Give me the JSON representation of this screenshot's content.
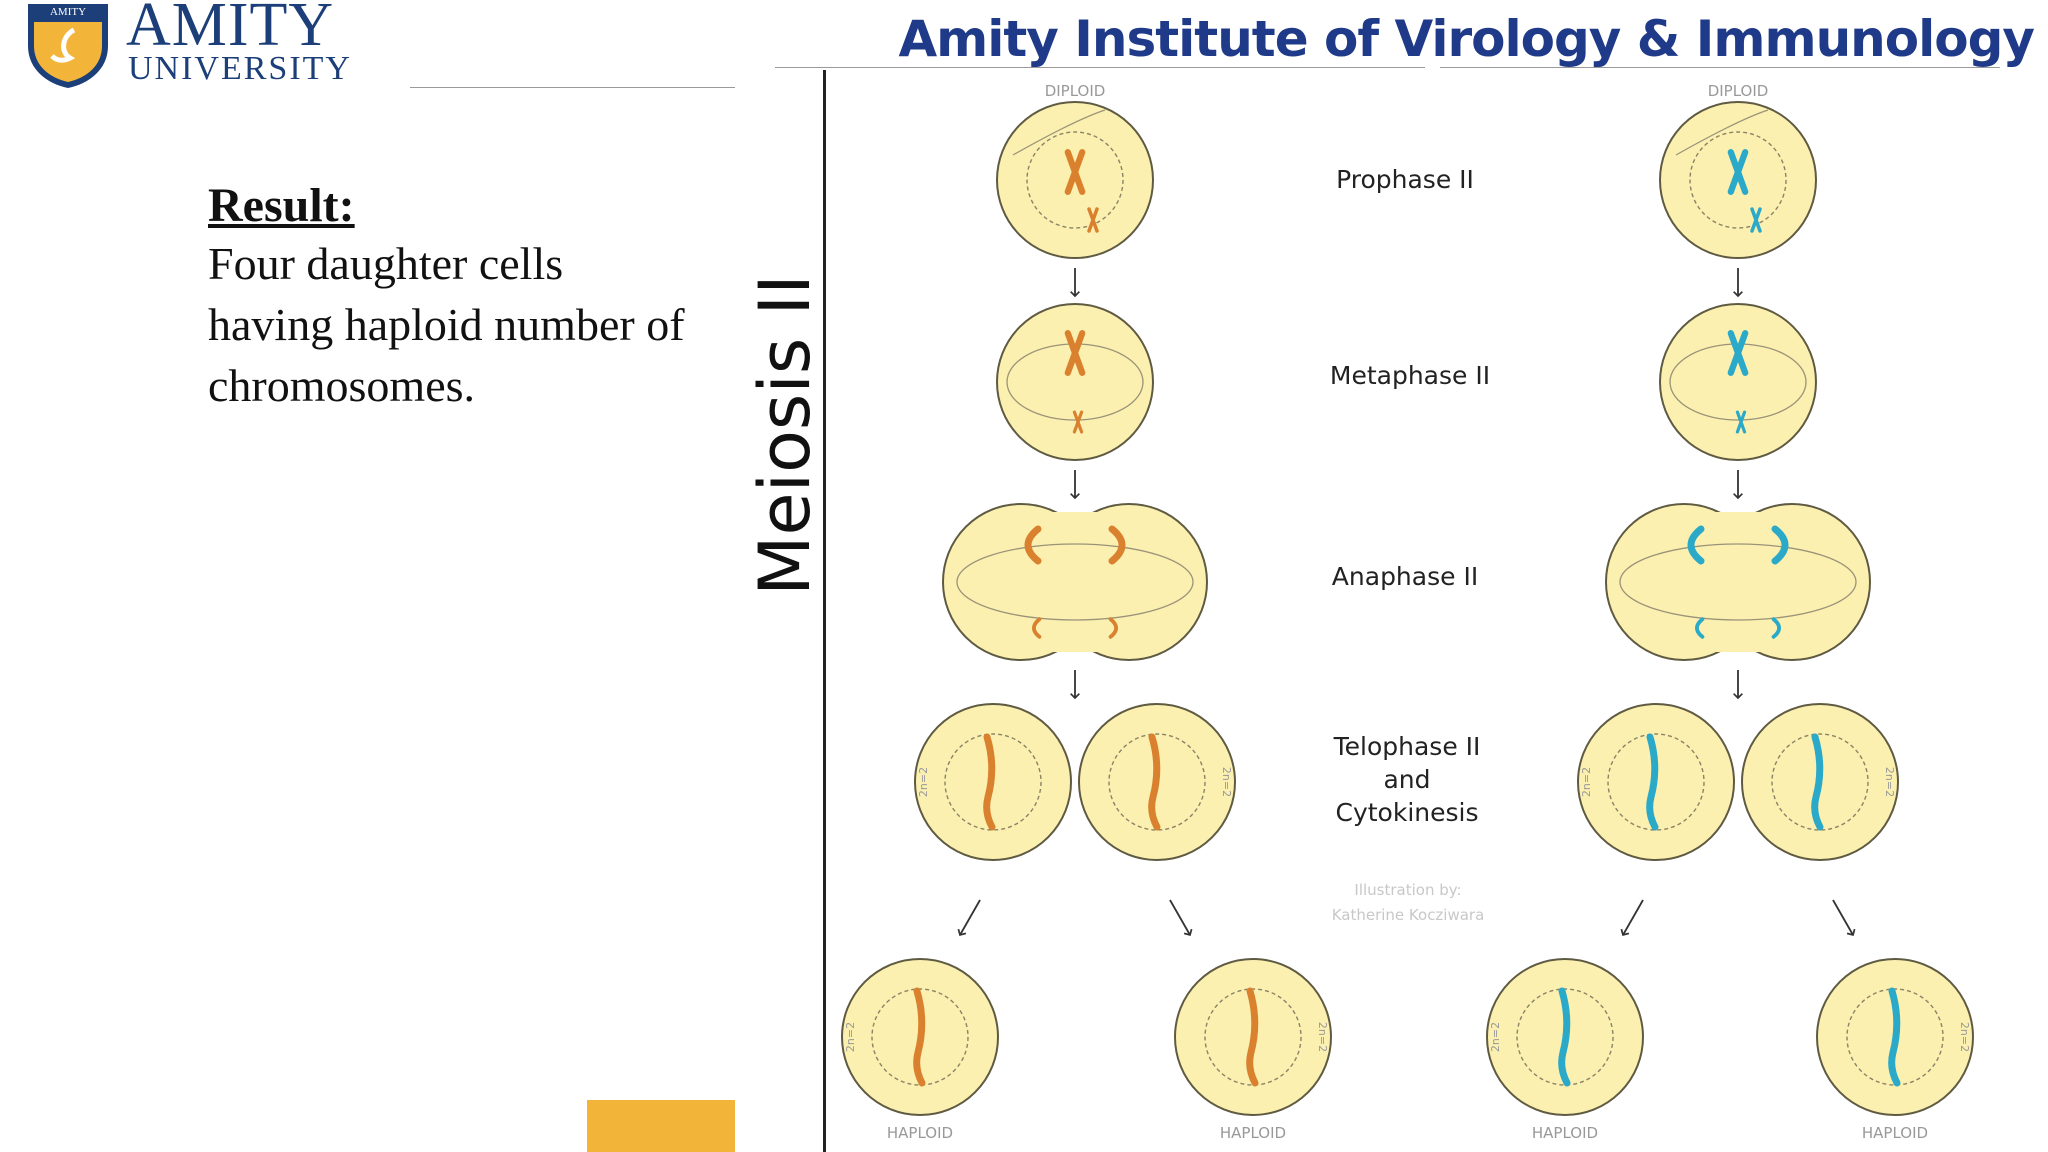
{
  "header": {
    "logo_badge": "AMITY",
    "logo_word": "AMITY",
    "logo_sub": "UNIVERSITY",
    "institute": "Amity Institute of Virology & Immunology"
  },
  "result": {
    "title": "Result:",
    "lines": [
      "Four daughter cells",
      "having haploid number of",
      "chromosomes."
    ]
  },
  "diagram": {
    "vertical_label": "Meiosis II",
    "top_labels": [
      "DIPLOID",
      "DIPLOID"
    ],
    "stages": [
      "Prophase II",
      "Metaphase II",
      "Anaphase II"
    ],
    "telophase_lines": [
      "Telophase II",
      "and",
      "Cytokinesis"
    ],
    "credit_lines": [
      "Illustration by:",
      "Katherine Kocziwara"
    ],
    "bottom_labels": [
      "HAPLOID",
      "HAPLOID",
      "HAPLOID",
      "HAPLOID"
    ],
    "cell_label": "2n=2",
    "colors": {
      "cell_fill": "#fbf0b0",
      "cell_stroke": "#5f5a42",
      "left_chromosome": "#d9812e",
      "right_chromosome": "#2aa9c9",
      "accent_block": "#f2b53a",
      "title_blue": "#1f3a88"
    }
  }
}
